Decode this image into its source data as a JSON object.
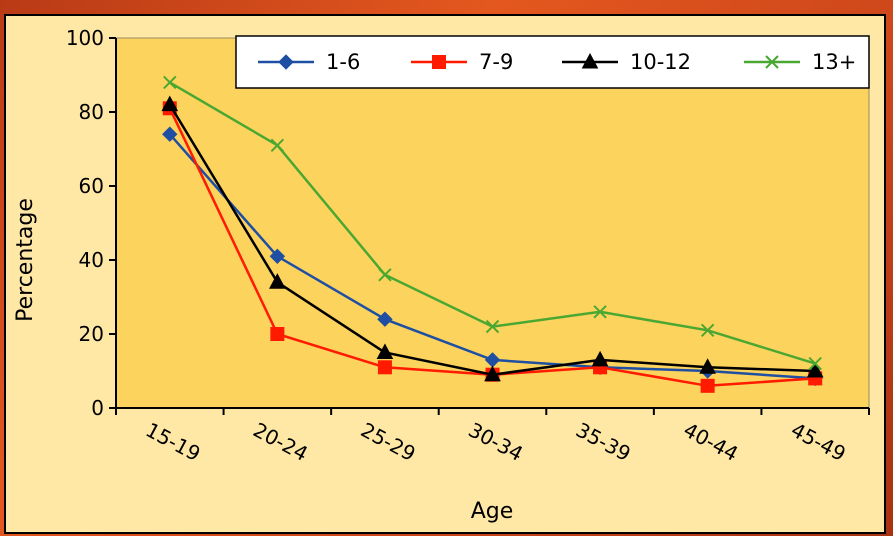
{
  "chart_data": {
    "type": "line",
    "title": "",
    "xlabel": "Age",
    "ylabel": "Percentage",
    "categories": [
      "15-19",
      "20-24",
      "25-29",
      "30-34",
      "35-39",
      "40-44",
      "45-49"
    ],
    "ylim": [
      0,
      100
    ],
    "yticks": [
      "0",
      "20",
      "40",
      "60",
      "80",
      "100"
    ],
    "legend_position": "top-right",
    "grid": false,
    "plot_background": "#fcd35c",
    "series": [
      {
        "name": "1-6",
        "color": "#1f4fa3",
        "marker": "diamond",
        "values": [
          74,
          41,
          24,
          13,
          11,
          10,
          8
        ]
      },
      {
        "name": "7-9",
        "color": "#ff1a00",
        "marker": "square",
        "values": [
          81,
          20,
          11,
          9,
          11,
          6,
          8
        ]
      },
      {
        "name": "10-12",
        "color": "#000000",
        "marker": "triangle",
        "values": [
          82,
          34,
          15,
          9,
          13,
          11,
          10
        ]
      },
      {
        "name": "13+",
        "color": "#4aa832",
        "marker": "x",
        "values": [
          88,
          71,
          36,
          22,
          26,
          21,
          12
        ]
      }
    ]
  }
}
